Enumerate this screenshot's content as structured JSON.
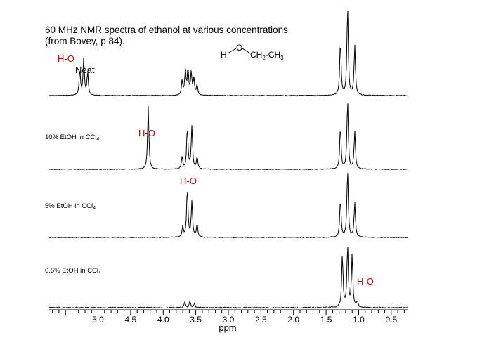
{
  "chart_data": {
    "type": "line",
    "title": "60 MHz NMR spectra of ethanol at various concentrations",
    "subtitle": "(from Bovey, p 84).",
    "xlabel": "ppm",
    "xlim": [
      5.75,
      0.25
    ],
    "x_reversed": true,
    "x_ticks": [
      "5.0",
      "4.5",
      "4.0",
      "3.5",
      "3.0",
      "2.5",
      "2.0",
      "1.5",
      "1.0",
      "0.5"
    ],
    "x_tick_values": [
      5.0,
      4.5,
      4.0,
      3.5,
      3.0,
      2.5,
      2.0,
      1.5,
      1.0,
      0.5
    ],
    "structure": {
      "h": "H",
      "o": "O",
      "ch2": "CH",
      "ch2_sub": "2",
      "dash": "-CH",
      "ch3_sub": "3"
    },
    "series": [
      {
        "name": "Neat",
        "name_sub": "",
        "oh_label": "H-O",
        "peaks": [
          {
            "ppm": 5.28,
            "height": 0.38
          },
          {
            "ppm": 5.22,
            "height": 0.55
          },
          {
            "ppm": 5.16,
            "height": 0.34
          },
          {
            "ppm": 3.71,
            "height": 0.22
          },
          {
            "ppm": 3.66,
            "height": 0.36
          },
          {
            "ppm": 3.62,
            "height": 0.38
          },
          {
            "ppm": 3.57,
            "height": 0.33
          },
          {
            "ppm": 3.53,
            "height": 0.24
          },
          {
            "ppm": 3.48,
            "height": 0.15
          },
          {
            "ppm": 1.28,
            "height": 0.82
          },
          {
            "ppm": 1.17,
            "height": 1.35
          },
          {
            "ppm": 1.06,
            "height": 0.75
          }
        ]
      },
      {
        "name": "10% EtOH in CCl",
        "name_sub": "4",
        "oh_label": "H-O",
        "peaks": [
          {
            "ppm": 4.23,
            "height": 0.95
          },
          {
            "ppm": 3.71,
            "height": 0.18
          },
          {
            "ppm": 3.63,
            "height": 0.64
          },
          {
            "ppm": 3.56,
            "height": 0.64
          },
          {
            "ppm": 3.48,
            "height": 0.18
          },
          {
            "ppm": 1.28,
            "height": 0.65
          },
          {
            "ppm": 1.17,
            "height": 1.05
          },
          {
            "ppm": 1.06,
            "height": 0.57
          }
        ]
      },
      {
        "name": "5% EtOH in CCl",
        "name_sub": "4",
        "oh_label": "H-O",
        "peaks": [
          {
            "ppm": 3.63,
            "height": 0.84
          },
          {
            "ppm": 3.56,
            "height": 0.6
          },
          {
            "ppm": 3.48,
            "height": 0.22
          },
          {
            "ppm": 3.7,
            "height": 0.18
          },
          {
            "ppm": 1.28,
            "height": 0.65
          },
          {
            "ppm": 1.17,
            "height": 1.15
          },
          {
            "ppm": 1.06,
            "height": 0.58
          }
        ]
      },
      {
        "name": "0.5% EtOH in CCl",
        "name_sub": "4",
        "oh_label": "H-O",
        "peaks": [
          {
            "ppm": 3.67,
            "height": 0.09
          },
          {
            "ppm": 3.59,
            "height": 0.1
          },
          {
            "ppm": 3.52,
            "height": 0.07
          },
          {
            "ppm": 1.25,
            "height": 0.88
          },
          {
            "ppm": 1.17,
            "height": 1.05
          },
          {
            "ppm": 1.1,
            "height": 0.88
          },
          {
            "ppm": 1.02,
            "height": 0.1
          }
        ]
      }
    ],
    "colors": {
      "trace": "#000000",
      "oh_label": "#cc0000",
      "text": "#000000"
    }
  }
}
